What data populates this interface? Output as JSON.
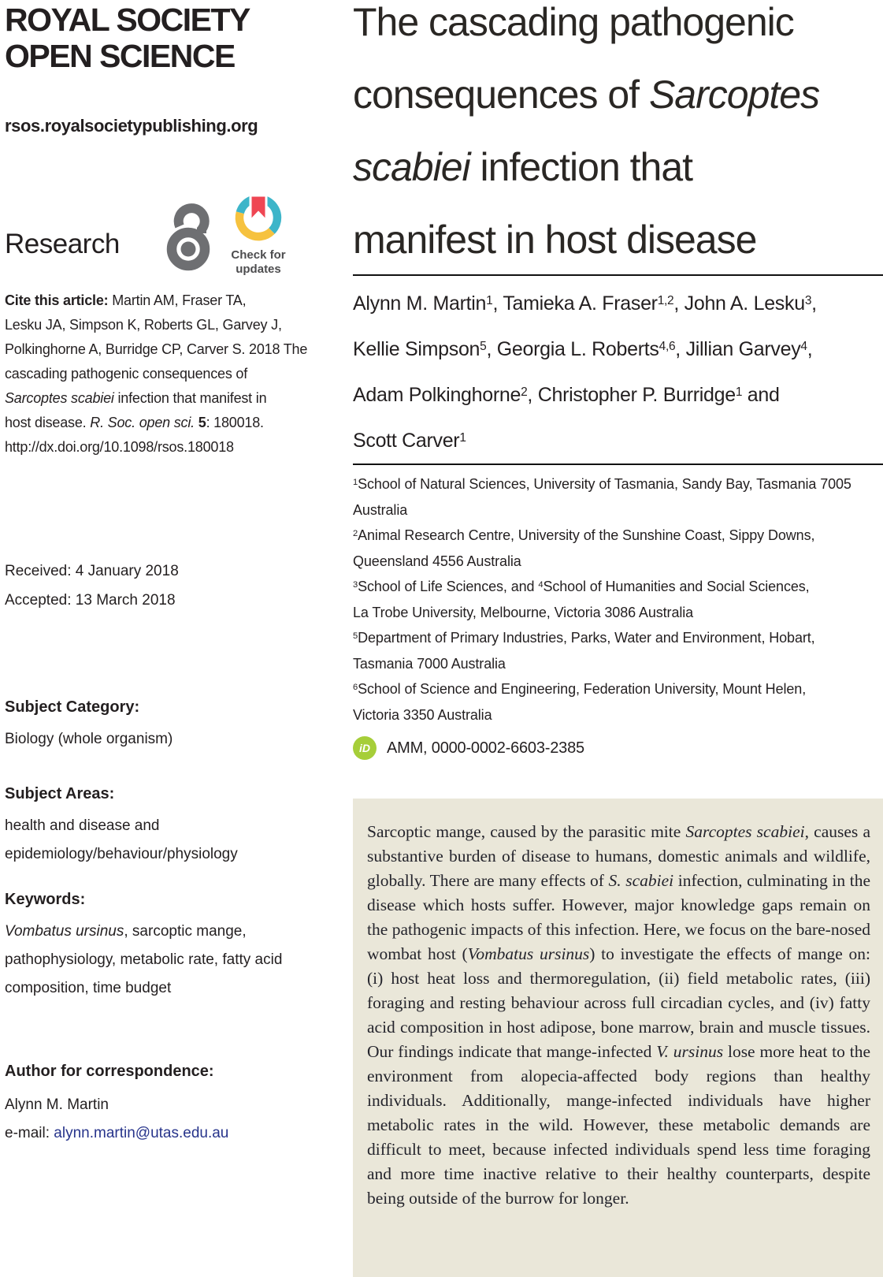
{
  "colors": {
    "text": "#231f20",
    "link_navy": "#27348b",
    "abstract_background": "#eae7d9",
    "orcid_green": "#a6ce39",
    "badge_teal": "#3db5c9",
    "badge_yellow": "#f6c23f",
    "badge_red": "#ef4653",
    "icon_gray": "#6e6f72"
  },
  "masthead": {
    "journal_line1": "ROYAL SOCIETY",
    "journal_line2": "OPEN SCIENCE",
    "site_url": "rsos.royalsocietypublishing.org",
    "section": "Research",
    "open_access_icon": "open-access-padlock",
    "badge_line1": "Check for",
    "badge_line2": "updates"
  },
  "sidebar": {
    "cite_segments": [
      {
        "t": "Cite this article: ",
        "b": true
      },
      {
        "t": "Martin AM, Fraser TA,",
        "nl": true
      },
      {
        "t": "Lesku JA, Simpson K, Roberts GL, Garvey J,",
        "nl": true
      },
      {
        "t": "Polkinghorne A, Burridge CP, Carver S. 2018 The",
        "nl": true
      },
      {
        "t": "cascading pathogenic consequences of",
        "nl": true
      },
      {
        "t": "Sarcoptes scabiei",
        "i": true
      },
      {
        "t": " infection that manifest in",
        "nl": true
      },
      {
        "t": "host disease. "
      },
      {
        "t": "R. Soc. open sci.",
        "i": true
      },
      {
        "t": " "
      },
      {
        "t": "5",
        "b": true
      },
      {
        "t": ": 180018.",
        "nl": true
      },
      {
        "t": "http://dx.doi.org/10.1098/rsos.180018"
      }
    ],
    "received": "Received: 4 January 2018",
    "accepted": "Accepted: 13 March 2018",
    "subject_category": {
      "heading": "Subject Category:",
      "value": "Biology (whole organism)"
    },
    "subject_areas": {
      "heading": "Subject Areas:",
      "segments": [
        {
          "t": "health and disease and",
          "nl": true
        },
        {
          "t": "epidemiology/behaviour/physiology"
        }
      ]
    },
    "keywords": {
      "heading": "Keywords:",
      "segments": [
        {
          "t": "Vombatus ursinus",
          "i": true
        },
        {
          "t": ", sarcoptic mange,",
          "nl": true
        },
        {
          "t": "pathophysiology, metabolic rate, fatty acid",
          "nl": true
        },
        {
          "t": "composition, time budget"
        }
      ]
    },
    "correspondence": {
      "heading": "Author for correspondence:",
      "name": "Alynn M. Martin",
      "email_prefix": "e-mail: ",
      "email": "alynn.martin@utas.edu.au"
    }
  },
  "article": {
    "title_segments": [
      {
        "t": "The cascading pathogenic",
        "nl": true
      },
      {
        "t": "consequences of "
      },
      {
        "t": "Sarcoptes",
        "i": true,
        "nl": true
      },
      {
        "t": "scabiei",
        "i": true
      },
      {
        "t": " infection that",
        "nl": true
      },
      {
        "t": "manifest in host disease"
      }
    ],
    "author_segments": [
      {
        "t": "Alynn M. Martin"
      },
      {
        "t": "1",
        "sup": true
      },
      {
        "t": ", Tamieka A. Fraser"
      },
      {
        "t": "1,2",
        "sup": true
      },
      {
        "t": ", John A. Lesku"
      },
      {
        "t": "3",
        "sup": true
      },
      {
        "t": ",",
        "nl": true
      },
      {
        "t": "Kellie Simpson"
      },
      {
        "t": "5",
        "sup": true
      },
      {
        "t": ", Georgia L. Roberts"
      },
      {
        "t": "4,6",
        "sup": true
      },
      {
        "t": ", Jillian Garvey"
      },
      {
        "t": "4",
        "sup": true
      },
      {
        "t": ",",
        "nl": true
      },
      {
        "t": "Adam Polkinghorne"
      },
      {
        "t": "2",
        "sup": true
      },
      {
        "t": ", Christopher P. Burridge"
      },
      {
        "t": "1",
        "sup": true
      },
      {
        "t": " and",
        "nl": true
      },
      {
        "t": "Scott Carver"
      },
      {
        "t": "1",
        "sup": true
      }
    ],
    "affiliation_segments": [
      {
        "t": "1",
        "sup": true
      },
      {
        "t": "School of Natural Sciences, University of Tasmania, Sandy Bay, Tasmania 7005",
        "nl": true
      },
      {
        "t": "Australia",
        "nl": true
      },
      {
        "t": "2",
        "sup": true
      },
      {
        "t": "Animal Research Centre, University of the Sunshine Coast, Sippy Downs,",
        "nl": true
      },
      {
        "t": "Queensland 4556 Australia",
        "nl": true
      },
      {
        "t": "3",
        "sup": true
      },
      {
        "t": "School of Life Sciences, and "
      },
      {
        "t": "4",
        "sup": true
      },
      {
        "t": "School of Humanities and Social Sciences,",
        "nl": true
      },
      {
        "t": "La Trobe University, Melbourne, Victoria 3086 Australia",
        "nl": true
      },
      {
        "t": "5",
        "sup": true
      },
      {
        "t": "Department of Primary Industries, Parks, Water and Environment, Hobart,",
        "nl": true
      },
      {
        "t": "Tasmania 7000 Australia",
        "nl": true
      },
      {
        "t": "6",
        "sup": true
      },
      {
        "t": "School of Science and Engineering, Federation University, Mount Helen,",
        "nl": true
      },
      {
        "t": "Victoria 3350 Australia"
      }
    ],
    "orcid_icon_label": "iD",
    "orcid_text": "AMM, 0000-0002-6603-2385",
    "abstract_segments": [
      {
        "t": "Sarcoptic mange, caused by the parasitic mite "
      },
      {
        "t": "Sarcoptes scabiei",
        "i": true
      },
      {
        "t": ", causes a substantive burden of disease to humans, domestic animals and wildlife, globally. There are many effects of "
      },
      {
        "t": "S. scabiei",
        "i": true
      },
      {
        "t": " infection, culminating in the disease which hosts suffer. However, major knowledge gaps remain on the pathogenic impacts of this infection. Here, we focus on the bare-nosed wombat host ("
      },
      {
        "t": "Vombatus ursinus",
        "i": true
      },
      {
        "t": ") to investigate the effects of mange on: (i) host heat loss and thermoregulation, (ii) field metabolic rates, (iii) foraging and resting behaviour across full circadian cycles, and (iv) fatty acid composition in host adipose, bone marrow, brain and muscle tissues. Our findings indicate that mange-infected "
      },
      {
        "t": "V. ursinus",
        "i": true
      },
      {
        "t": " lose more heat to the environment from alopecia-affected body regions than healthy individuals. Additionally, mange-infected individuals have higher metabolic rates in the wild. However, these metabolic demands are difficult to meet, because infected individuals spend less time foraging and more time inactive relative to their healthy counterparts, despite being outside of the burrow for longer."
      }
    ]
  }
}
